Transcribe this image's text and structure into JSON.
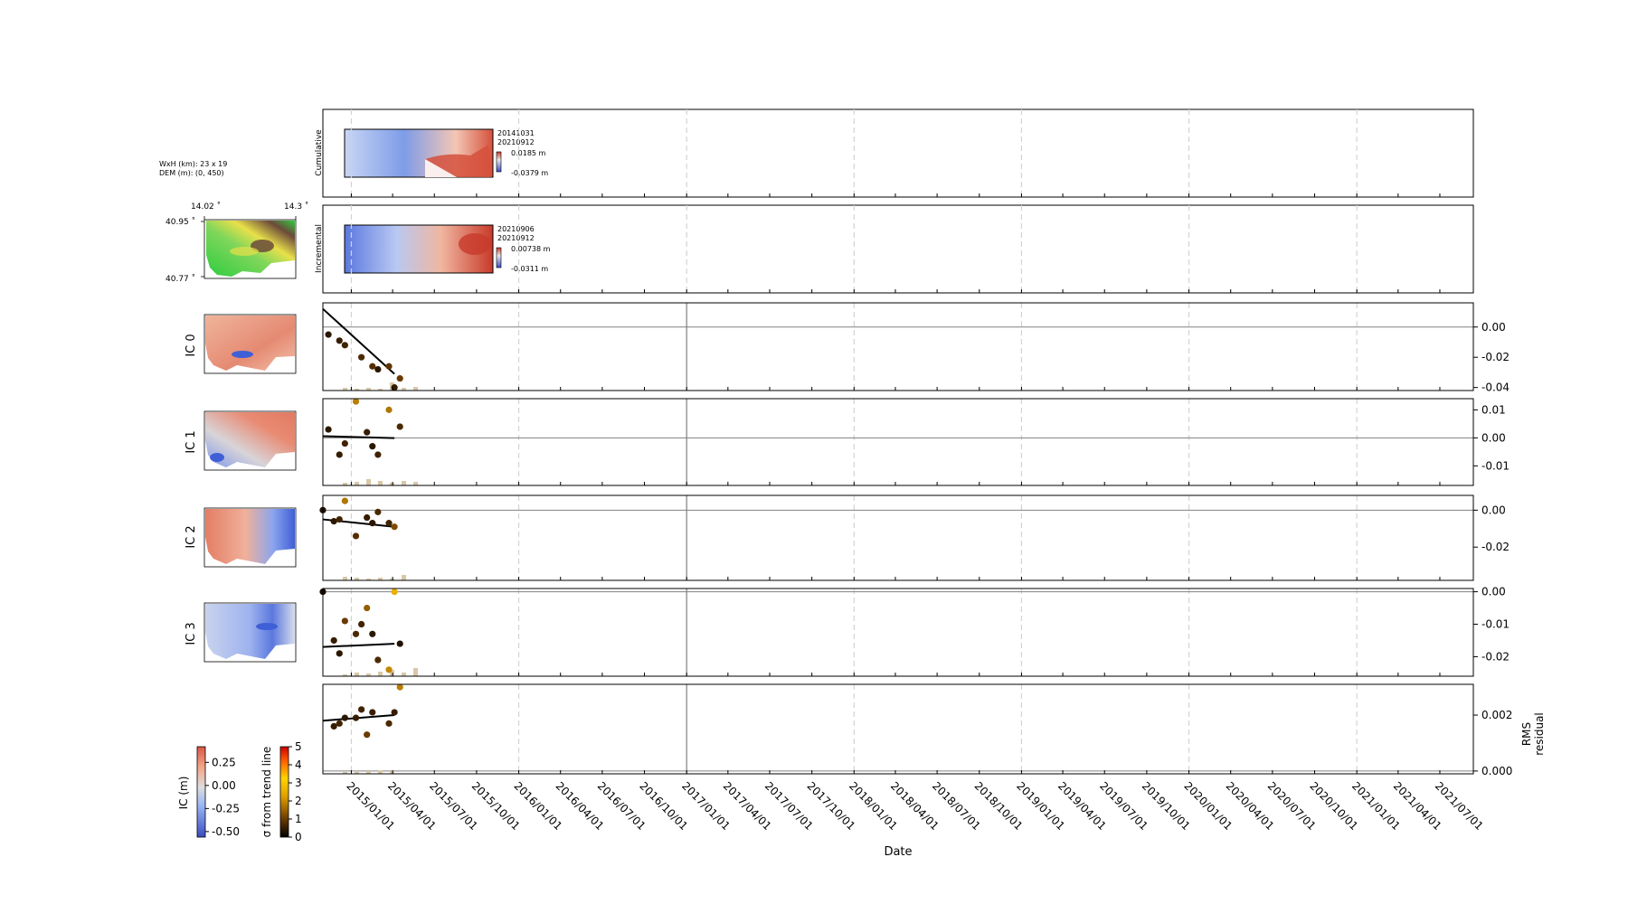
{
  "info": {
    "size_line": "WxH (km): 23 x 19",
    "dem_line": "DEM (m): (0, 450)",
    "lon_left": "14.02 ˚",
    "lon_right": "14.3 ˚",
    "lat_top": "40.95 ˚",
    "lat_bottom": "40.77 ˚"
  },
  "top_panels": {
    "cumulative": {
      "label": "Cumulative",
      "date1": "20141031",
      "date2": "20210912",
      "cb_max": "0.0185 m",
      "cb_min": "-0.0379 m"
    },
    "incremental": {
      "label": "Incremental",
      "date1": "20210906",
      "date2": "20210912",
      "cb_max": "0.00738 m",
      "cb_min": "-0.0311 m"
    }
  },
  "colors": {
    "dem_low": "#2ecc40",
    "dem_mid": "#e8e04a",
    "dem_high": "#6b4a3a",
    "map_red": "#d9624d",
    "map_pink": "#f2b8a2",
    "map_blue": "#3f5fd6",
    "map_lightblue": "#b8c8f0",
    "trend_line": "#000000",
    "zero_line": "#808080",
    "bar": "#d8c8a8",
    "vline_dashed": "#d3d3d3",
    "vline_solid": "#808080"
  },
  "chart_data": [
    {
      "type": "scatter",
      "panel": "IC 0",
      "x_dates": [
        "2014-11-12",
        "2014-12-06",
        "2014-12-18",
        "2015-01-23",
        "2015-02-16",
        "2015-02-28",
        "2015-03-24",
        "2015-04-05",
        "2015-04-17"
      ],
      "values": [
        -0.005,
        -0.009,
        -0.012,
        -0.02,
        -0.026,
        -0.028,
        -0.026,
        -0.04,
        -0.034
      ],
      "sigma": [
        0.4,
        0.5,
        0.6,
        0.7,
        0.8,
        0.4,
        0.9,
        0.5,
        1.0
      ],
      "trend": {
        "x": [
          "2014-10-31",
          "2015-04-05"
        ],
        "y": [
          0.012,
          -0.031
        ]
      },
      "ylim": [
        -0.042,
        0.016
      ],
      "yticks": [
        -0.04,
        -0.02,
        0.0
      ],
      "ytick_labels": [
        "-0.04",
        "-0.02",
        "0.00"
      ],
      "bars": [
        0.3,
        0.2,
        0.3,
        0.2,
        0.9,
        0.3,
        0.4
      ]
    },
    {
      "type": "scatter",
      "panel": "IC 1",
      "x_dates": [
        "2014-11-12",
        "2014-12-06",
        "2014-12-18",
        "2015-01-11",
        "2015-02-04",
        "2015-02-16",
        "2015-02-28",
        "2015-03-24",
        "2015-04-17"
      ],
      "values": [
        0.003,
        -0.006,
        -0.002,
        0.013,
        0.002,
        -0.003,
        -0.006,
        0.01,
        0.004
      ],
      "sigma": [
        0.4,
        0.5,
        0.6,
        1.8,
        0.5,
        0.4,
        0.6,
        1.7,
        0.7
      ],
      "trend": {
        "x": [
          "2014-10-31",
          "2015-04-05"
        ],
        "y": [
          0.0006,
          -0.0001
        ]
      },
      "ylim": [
        -0.017,
        0.014
      ],
      "yticks": [
        -0.01,
        0.0,
        0.01
      ],
      "ytick_labels": [
        "-0.01",
        "0.00",
        "0.01"
      ],
      "bars": [
        0.3,
        0.4,
        0.7,
        0.5,
        0.3,
        0.5,
        0.4
      ]
    },
    {
      "type": "scatter",
      "panel": "IC 2",
      "x_dates": [
        "2014-10-31",
        "2014-11-24",
        "2014-12-06",
        "2014-12-18",
        "2015-01-11",
        "2015-02-04",
        "2015-02-16",
        "2015-02-28",
        "2015-03-24",
        "2015-04-05"
      ],
      "values": [
        0.0,
        -0.006,
        -0.005,
        0.005,
        -0.014,
        -0.004,
        -0.007,
        -0.001,
        -0.007,
        -0.009
      ],
      "sigma": [
        0.3,
        0.4,
        0.6,
        1.7,
        0.8,
        0.5,
        0.4,
        0.7,
        0.6,
        1.2
      ],
      "trend": {
        "x": [
          "2014-10-31",
          "2015-04-05"
        ],
        "y": [
          -0.005,
          -0.009
        ]
      },
      "ylim": [
        -0.038,
        0.008
      ],
      "yticks": [
        -0.02,
        0.0
      ],
      "ytick_labels": [
        "-0.02",
        "0.00"
      ],
      "bars": [
        0.4,
        0.3,
        0.2,
        0.3,
        0.2,
        0.6
      ]
    },
    {
      "type": "scatter",
      "panel": "IC 3",
      "x_dates": [
        "2014-10-31",
        "2014-11-24",
        "2014-12-06",
        "2014-12-18",
        "2015-01-11",
        "2015-01-23",
        "2015-02-04",
        "2015-02-16",
        "2015-02-28",
        "2015-03-24",
        "2015-04-05",
        "2015-04-17"
      ],
      "values": [
        0.0,
        -0.015,
        -0.019,
        -0.009,
        -0.013,
        -0.01,
        -0.005,
        -0.013,
        -0.021,
        -0.024,
        0.0,
        -0.016
      ],
      "sigma": [
        0.2,
        0.5,
        0.4,
        1.0,
        0.7,
        0.6,
        1.4,
        0.4,
        0.7,
        1.9,
        2.5,
        0.3
      ],
      "trend": {
        "x": [
          "2014-10-31",
          "2015-04-05"
        ],
        "y": [
          -0.017,
          -0.016
        ]
      },
      "ylim": [
        -0.026,
        0.001
      ],
      "yticks": [
        -0.02,
        -0.01,
        0.0
      ],
      "ytick_labels": [
        "-0.02",
        "-0.01",
        "0.00"
      ],
      "bars": [
        0.2,
        0.4,
        0.3,
        0.5,
        0.7,
        0.4,
        0.9
      ]
    },
    {
      "type": "scatter",
      "panel": "RMS residual",
      "ylabel": "RMS\nresidual",
      "x_dates": [
        "2014-11-24",
        "2014-12-06",
        "2014-12-18",
        "2015-01-11",
        "2015-01-23",
        "2015-02-04",
        "2015-02-16",
        "2015-03-24",
        "2015-04-05",
        "2015-04-17"
      ],
      "values": [
        0.0016,
        0.0017,
        0.0019,
        0.0019,
        0.0022,
        0.0013,
        0.0021,
        0.0017,
        0.0021,
        0.003
      ],
      "sigma": [
        0.5,
        0.6,
        0.4,
        0.5,
        0.6,
        1.0,
        0.5,
        0.7,
        0.5,
        1.8
      ],
      "trend": {
        "x": [
          "2014-10-31",
          "2015-04-05"
        ],
        "y": [
          0.0018,
          0.002
        ]
      },
      "ylim": [
        -0.0001,
        0.0031
      ],
      "yticks": [
        0.0,
        0.002
      ],
      "ytick_labels": [
        "0.000",
        "0.002"
      ],
      "bars": [
        0.2,
        0.2,
        0.3,
        0.4,
        0.3
      ]
    }
  ],
  "x_axis": {
    "label": "Date",
    "start": "2014-10-31",
    "end": "2021-09-12",
    "tick_labels": [
      "2015/01/01",
      "2015/04/01",
      "2015/07/01",
      "2015/10/01",
      "2016/01/01",
      "2016/04/01",
      "2016/07/01",
      "2016/10/01",
      "2017/01/01",
      "2017/04/01",
      "2017/07/01",
      "2017/10/01",
      "2018/01/01",
      "2018/04/01",
      "2018/07/01",
      "2018/10/01",
      "2019/01/01",
      "2019/04/01",
      "2019/07/01",
      "2019/10/01",
      "2020/01/01",
      "2020/04/01",
      "2020/07/01",
      "2020/10/01",
      "2021/01/01",
      "2021/04/01",
      "2021/07/01"
    ],
    "dashed_years": [
      "2015-01-01",
      "2016-01-01",
      "2018-01-01",
      "2019-01-01",
      "2020-01-01",
      "2021-01-01"
    ],
    "solid_years": [
      "2017-01-01"
    ]
  },
  "colorbars": {
    "ic": {
      "label": "IC (m)",
      "ticks": [
        "0.25",
        "0.00",
        "-0.25",
        "-0.50"
      ],
      "values": [
        0.25,
        0.0,
        -0.25,
        -0.5
      ],
      "min": -0.56,
      "max": 0.42
    },
    "sigma": {
      "label": "σ from trend line",
      "ticks": [
        "5",
        "4",
        "3",
        "2",
        "1",
        "0"
      ],
      "values": [
        5,
        4,
        3,
        2,
        1,
        0
      ],
      "min": 0,
      "max": 5
    }
  }
}
